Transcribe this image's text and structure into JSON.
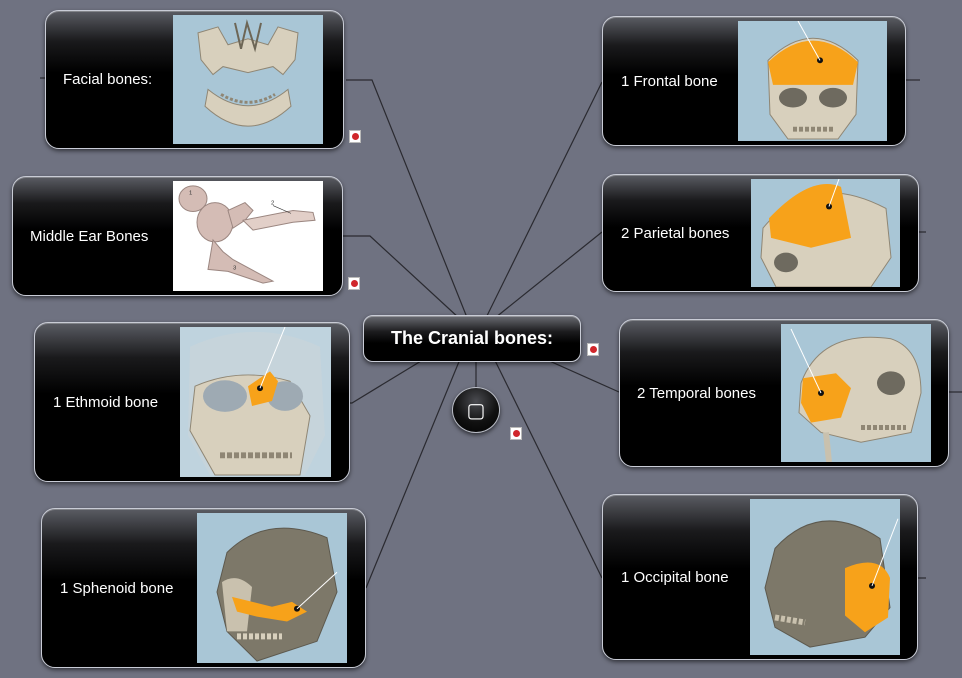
{
  "central": {
    "title": "The Cranial bones:"
  },
  "sub_node": {
    "symbol": "▢"
  },
  "left_topics": {
    "facial": {
      "label": "Facial bones:"
    },
    "middle_ear": {
      "label": "Middle Ear Bones",
      "image_numbers": [
        "1",
        "2",
        "3"
      ]
    },
    "ethmoid": {
      "label": "1 Ethmoid bone"
    },
    "sphenoid": {
      "label": "1 Sphenoid bone"
    }
  },
  "right_topics": {
    "frontal": {
      "label": "1 Frontal bone"
    },
    "parietal": {
      "label": "2 Parietal bones"
    },
    "temporal": {
      "label": "2 Temporal bones"
    },
    "occipital": {
      "label": "1 Occipital bone"
    }
  },
  "attachment_icon": "pdf-attachment-icon",
  "colors": {
    "background": "#6f7281",
    "connector": "#2a2a30",
    "highlight_bone": "#f7a21a",
    "skull_bone": "#d8d0bd",
    "image_bg": "#a9c6d6"
  }
}
